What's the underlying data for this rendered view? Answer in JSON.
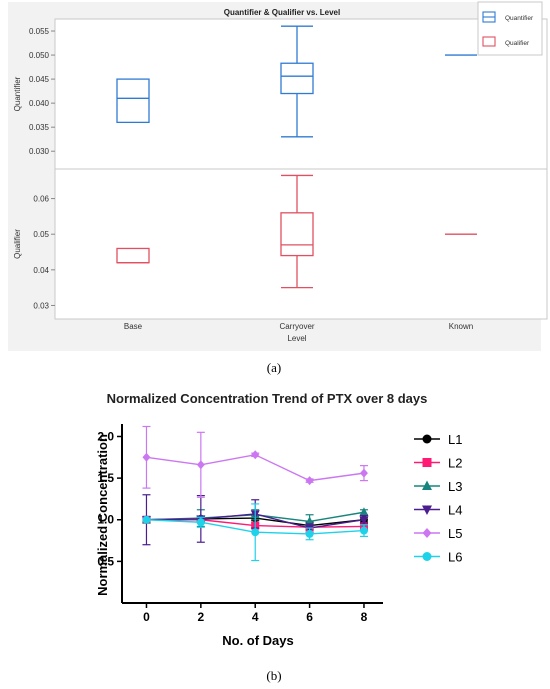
{
  "colors": {
    "quantifier": "#2f7bd2",
    "qualifier": "#e05060",
    "panel_bg": "#f2f2f2",
    "L1": "#000000",
    "L2": "#ff1a75",
    "L3": "#17857d",
    "L4": "#4b1d8f",
    "L5": "#cc77f2",
    "L6": "#1ed2ea"
  },
  "panel_a": {
    "caption": "(a)",
    "chart_data": {
      "type": "box",
      "title": "Quantifier & Qualifier vs. Level",
      "xlabel": "Level",
      "categories": [
        "Base",
        "Carryover",
        "Known"
      ],
      "legend": [
        "Quantifier",
        "Qualifier"
      ],
      "legend_position": "top-right",
      "subplots": [
        {
          "ylabel": "Quantifier",
          "ylim": [
            0.0263,
            0.0575
          ],
          "yticks": [
            "0.030",
            "0.035",
            "0.040",
            "0.045",
            "0.050",
            "0.055"
          ],
          "boxes": [
            {
              "category": "Base",
              "min": 0.036,
              "q1": 0.036,
              "median": 0.041,
              "q3": 0.045,
              "max": 0.045
            },
            {
              "category": "Carryover",
              "min": 0.033,
              "q1": 0.042,
              "median": 0.0456,
              "q3": 0.0483,
              "max": 0.056
            },
            {
              "category": "Known",
              "min": 0.05,
              "q1": 0.05,
              "median": 0.05,
              "q3": 0.05,
              "max": 0.05
            }
          ]
        },
        {
          "ylabel": "Qualifier",
          "ylim": [
            0.0262,
            0.0683
          ],
          "yticks": [
            "0.03",
            "0.04",
            "0.05",
            "0.06"
          ],
          "boxes": [
            {
              "category": "Base",
              "min": 0.042,
              "q1": 0.042,
              "median": 0.042,
              "q3": 0.046,
              "max": 0.046
            },
            {
              "category": "Carryover",
              "min": 0.035,
              "q1": 0.044,
              "median": 0.047,
              "q3": 0.056,
              "max": 0.0665
            },
            {
              "category": "Known",
              "min": 0.05,
              "q1": 0.05,
              "median": 0.05,
              "q3": 0.05,
              "max": 0.05
            }
          ]
        }
      ]
    }
  },
  "panel_b": {
    "caption": "(b)",
    "chart_data": {
      "type": "line",
      "title": "Normalized Concentration Trend of PTX over 8 days",
      "xlabel": "No. of Days",
      "ylabel": "Normalized Concentration",
      "x": [
        0,
        2,
        4,
        6,
        8
      ],
      "xticks": [
        "0",
        "2",
        "4",
        "6",
        "8"
      ],
      "yticks": [
        "0.5",
        "1.0",
        "1.5",
        "2.0"
      ],
      "xlim": [
        -0.9,
        8.7
      ],
      "ylim": [
        0.0,
        2.15
      ],
      "series": [
        {
          "name": "L1",
          "marker": "circle",
          "values": [
            1.0,
            1.01,
            1.02,
            0.93,
            1.0
          ],
          "errors": [
            0.0,
            0.03,
            0.03,
            0.04,
            0.03
          ]
        },
        {
          "name": "L2",
          "marker": "square",
          "values": [
            1.0,
            1.0,
            0.93,
            0.91,
            0.92
          ],
          "errors": [
            0.0,
            0.03,
            0.03,
            0.03,
            0.03
          ]
        },
        {
          "name": "L3",
          "marker": "triangle-up",
          "values": [
            1.0,
            1.02,
            1.06,
            0.98,
            1.09
          ],
          "errors": [
            0.0,
            0.1,
            0.06,
            0.08,
            0.03
          ]
        },
        {
          "name": "L4",
          "marker": "triangle-down",
          "values": [
            1.0,
            1.01,
            1.07,
            0.9,
            1.0
          ],
          "errors": [
            0.3,
            0.28,
            0.17,
            0.05,
            0.05
          ]
        },
        {
          "name": "L5",
          "marker": "diamond",
          "values": [
            1.75,
            1.66,
            1.78,
            1.47,
            1.56
          ],
          "errors": [
            0.37,
            0.39,
            0.02,
            0.02,
            0.09
          ]
        },
        {
          "name": "L6",
          "marker": "circle",
          "values": [
            1.0,
            0.97,
            0.85,
            0.83,
            0.87
          ],
          "errors": [
            0.0,
            0.06,
            0.34,
            0.07,
            0.07
          ]
        }
      ]
    }
  }
}
